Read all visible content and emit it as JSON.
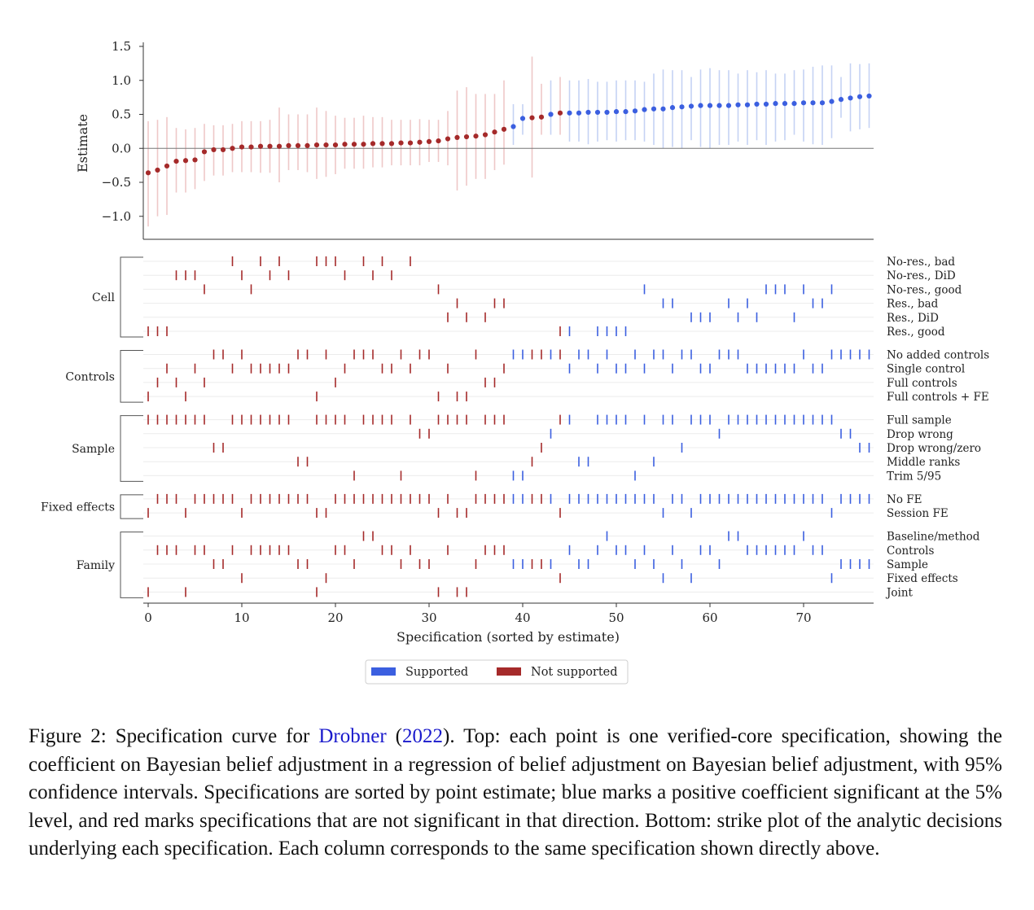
{
  "chart_data": {
    "type": "scatter",
    "ylabel": "Estimate",
    "xlabel": "Specification (sorted by estimate)",
    "xlim": [
      -0.5,
      77.5
    ],
    "ylim": [
      -1.35,
      1.55
    ],
    "yticks": [
      1.5,
      1.0,
      0.5,
      0.0,
      -0.5,
      -1.0
    ],
    "ytick_labels": [
      "1.5",
      "1.0",
      "0.5",
      "0.0",
      "−0.5",
      "−1.0"
    ],
    "xticks": [
      0,
      10,
      20,
      30,
      40,
      50,
      60,
      70
    ],
    "xtick_labels": [
      "0",
      "10",
      "20",
      "30",
      "40",
      "50",
      "60",
      "70"
    ],
    "colors": {
      "supported": "#3b5fe0",
      "not_supported": "#a52a2a",
      "ci_supported": "#c5d2f3",
      "ci_not_supported": "#eec8c8"
    },
    "supported_from_index": 39,
    "supported_exceptions": [
      41,
      42,
      44
    ],
    "estimates": [
      -0.36,
      -0.32,
      -0.26,
      -0.19,
      -0.18,
      -0.17,
      -0.05,
      -0.02,
      -0.02,
      0.0,
      0.02,
      0.02,
      0.03,
      0.03,
      0.03,
      0.04,
      0.04,
      0.04,
      0.05,
      0.05,
      0.05,
      0.06,
      0.06,
      0.06,
      0.07,
      0.07,
      0.07,
      0.08,
      0.08,
      0.09,
      0.1,
      0.11,
      0.14,
      0.16,
      0.17,
      0.18,
      0.2,
      0.24,
      0.28,
      0.32,
      0.44,
      0.45,
      0.46,
      0.5,
      0.52,
      0.52,
      0.52,
      0.53,
      0.53,
      0.53,
      0.54,
      0.54,
      0.55,
      0.57,
      0.58,
      0.58,
      0.6,
      0.61,
      0.62,
      0.63,
      0.63,
      0.63,
      0.63,
      0.64,
      0.64,
      0.65,
      0.65,
      0.66,
      0.66,
      0.66,
      0.67,
      0.67,
      0.67,
      0.69,
      0.72,
      0.74,
      0.76,
      0.77
    ],
    "ci_lower": [
      -1.15,
      -1.0,
      -0.98,
      -0.65,
      -0.65,
      -0.6,
      -0.48,
      -0.4,
      -0.4,
      -0.35,
      -0.35,
      -0.35,
      -0.36,
      -0.36,
      -0.5,
      -0.32,
      -0.32,
      -0.35,
      -0.45,
      -0.42,
      -0.38,
      -0.3,
      -0.3,
      -0.3,
      -0.28,
      -0.28,
      -0.25,
      -0.25,
      -0.25,
      -0.25,
      -0.2,
      -0.2,
      -0.25,
      -0.62,
      -0.55,
      -0.45,
      -0.45,
      -0.32,
      -0.24,
      0.05,
      0.2,
      -0.43,
      0.2,
      0.2,
      0.2,
      0.1,
      0.1,
      0.06,
      0.1,
      0.12,
      0.1,
      0.12,
      0.12,
      0.1,
      0.05,
      0.0,
      0.02,
      0.0,
      0.12,
      0.02,
      0.0,
      0.05,
      0.05,
      0.1,
      0.05,
      0.12,
      0.05,
      0.1,
      0.12,
      0.2,
      0.1,
      0.06,
      0.05,
      0.15,
      0.45,
      0.25,
      0.28,
      0.3
    ],
    "ci_upper": [
      0.4,
      0.42,
      0.46,
      0.3,
      0.28,
      0.3,
      0.36,
      0.34,
      0.34,
      0.36,
      0.4,
      0.4,
      0.4,
      0.42,
      0.6,
      0.5,
      0.5,
      0.5,
      0.6,
      0.55,
      0.48,
      0.45,
      0.45,
      0.48,
      0.46,
      0.46,
      0.42,
      0.42,
      0.42,
      0.43,
      0.42,
      0.42,
      0.55,
      0.85,
      0.9,
      0.8,
      0.8,
      0.8,
      1.0,
      0.65,
      0.65,
      1.35,
      0.95,
      1.0,
      1.05,
      1.0,
      1.0,
      1.02,
      0.98,
      0.98,
      1.0,
      1.0,
      1.0,
      0.98,
      1.1,
      1.16,
      1.15,
      1.15,
      1.05,
      1.16,
      1.18,
      1.15,
      1.15,
      1.1,
      1.15,
      1.12,
      1.15,
      1.1,
      1.1,
      1.15,
      1.16,
      1.2,
      1.22,
      1.22,
      1.05,
      1.25,
      1.24,
      1.25
    ],
    "strike_groups": [
      {
        "name": "Cell",
        "rows": [
          {
            "label": "No-res., bad",
            "specs": [
              9,
              12,
              14,
              18,
              19,
              20,
              23,
              25,
              28
            ]
          },
          {
            "label": "No-res., DiD",
            "specs": [
              3,
              4,
              5,
              10,
              13,
              15,
              21,
              24,
              26
            ]
          },
          {
            "label": "No-res., good",
            "specs": [
              6,
              11,
              31,
              53,
              66,
              67,
              68,
              70,
              73
            ]
          },
          {
            "label": "Res., bad",
            "specs": [
              33,
              37,
              38,
              55,
              56,
              62,
              64,
              71,
              72
            ]
          },
          {
            "label": "Res., DiD",
            "specs": [
              32,
              34,
              36,
              58,
              59,
              60,
              63,
              65,
              69
            ]
          },
          {
            "label": "Res., good",
            "specs": [
              0,
              1,
              2,
              44,
              45,
              48,
              49,
              50,
              51
            ]
          }
        ]
      },
      {
        "name": "Controls",
        "rows": [
          {
            "label": "No added controls",
            "specs": [
              7,
              8,
              10,
              16,
              17,
              19,
              22,
              23,
              24,
              27,
              29,
              30,
              35,
              39,
              40,
              41,
              42,
              43,
              44,
              46,
              47,
              49,
              52,
              54,
              55,
              57,
              58,
              61,
              62,
              63,
              70,
              73,
              74,
              75,
              76,
              77
            ]
          },
          {
            "label": "Single control",
            "specs": [
              2,
              5,
              9,
              11,
              12,
              13,
              14,
              15,
              21,
              25,
              26,
              28,
              32,
              38,
              45,
              48,
              50,
              51,
              53,
              56,
              59,
              60,
              64,
              65,
              66,
              67,
              68,
              69,
              71,
              72
            ]
          },
          {
            "label": "Full controls",
            "specs": [
              1,
              3,
              6,
              20,
              36,
              37
            ]
          },
          {
            "label": "Full controls + FE",
            "specs": [
              0,
              4,
              18,
              31,
              33,
              34
            ]
          }
        ]
      },
      {
        "name": "Sample",
        "rows": [
          {
            "label": "Full sample",
            "specs": [
              0,
              1,
              2,
              3,
              4,
              5,
              6,
              9,
              10,
              11,
              12,
              13,
              14,
              15,
              18,
              19,
              20,
              21,
              23,
              24,
              25,
              26,
              28,
              31,
              32,
              33,
              34,
              36,
              37,
              38,
              44,
              45,
              48,
              49,
              50,
              51,
              53,
              55,
              56,
              58,
              59,
              60,
              62,
              63,
              64,
              65,
              66,
              67,
              68,
              69,
              70,
              71,
              72,
              73
            ]
          },
          {
            "label": "Drop wrong",
            "specs": [
              29,
              30,
              43,
              61,
              74,
              75
            ]
          },
          {
            "label": "Drop wrong/zero",
            "specs": [
              7,
              8,
              42,
              57,
              76,
              77
            ]
          },
          {
            "label": "Middle ranks",
            "specs": [
              16,
              17,
              41,
              46,
              47,
              54
            ]
          },
          {
            "label": "Trim 5/95",
            "specs": [
              22,
              27,
              35,
              39,
              40,
              52
            ]
          }
        ]
      },
      {
        "name": "Fixed effects",
        "rows": [
          {
            "label": "No FE",
            "specs": [
              1,
              2,
              3,
              5,
              6,
              7,
              8,
              9,
              11,
              12,
              13,
              14,
              15,
              16,
              17,
              20,
              21,
              22,
              23,
              24,
              25,
              26,
              27,
              28,
              29,
              30,
              32,
              35,
              36,
              37,
              38,
              39,
              40,
              41,
              42,
              43,
              45,
              46,
              47,
              48,
              49,
              50,
              51,
              52,
              53,
              54,
              56,
              57,
              59,
              60,
              61,
              62,
              63,
              64,
              65,
              66,
              67,
              68,
              69,
              70,
              71,
              72,
              74,
              75,
              76,
              77
            ]
          },
          {
            "label": "Session FE",
            "specs": [
              0,
              4,
              10,
              18,
              19,
              31,
              33,
              34,
              44,
              55,
              58,
              73
            ]
          }
        ]
      },
      {
        "name": "Family",
        "rows": [
          {
            "label": "Baseline/method",
            "specs": [
              23,
              24,
              49,
              62,
              63,
              70
            ]
          },
          {
            "label": "Controls",
            "specs": [
              1,
              2,
              3,
              5,
              6,
              9,
              11,
              12,
              13,
              14,
              15,
              20,
              21,
              25,
              26,
              28,
              32,
              36,
              37,
              38,
              45,
              48,
              50,
              51,
              53,
              56,
              59,
              60,
              64,
              65,
              66,
              67,
              68,
              69,
              71,
              72
            ]
          },
          {
            "label": "Sample",
            "specs": [
              7,
              8,
              16,
              17,
              22,
              27,
              29,
              30,
              35,
              39,
              40,
              41,
              42,
              43,
              46,
              47,
              52,
              54,
              57,
              61,
              74,
              75,
              76,
              77
            ]
          },
          {
            "label": "Fixed effects",
            "specs": [
              10,
              19,
              44,
              55,
              58,
              73
            ]
          },
          {
            "label": "Joint",
            "specs": [
              0,
              4,
              18,
              31,
              33,
              34
            ]
          }
        ]
      }
    ],
    "legend": {
      "placement": "bottom-center",
      "entries": [
        "Supported",
        "Not supported"
      ]
    }
  },
  "caption": {
    "before_ref": "Figure 2: Specification curve for ",
    "ref_author": "Drobner",
    "open_paren": " (",
    "ref_year": "2022",
    "after_ref": "). Top: each point is one verified-core specification, showing the coefficient on Bayesian belief adjustment in a regression of belief adjustment on Bayesian belief adjustment, with 95% confidence intervals. Specifications are sorted by point estimate; blue marks a positive coefficient significant at the 5% level, and red marks specifications that are not significant in that direction. Bottom: strike plot of the analytic decisions underlying each specification. Each column corresponds to the same specification shown directly above."
  }
}
